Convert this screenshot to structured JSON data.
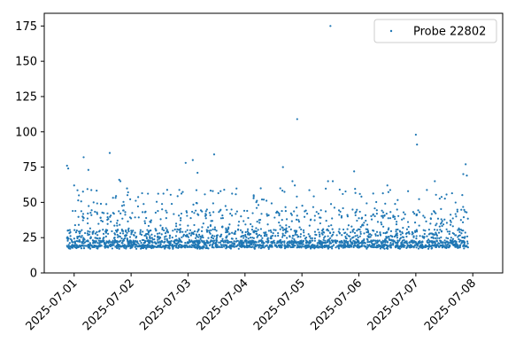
{
  "chart_data": {
    "type": "scatter",
    "title": "",
    "xlabel": "",
    "ylabel": "",
    "x_axis": {
      "kind": "date",
      "range": [
        "2025-06-30T11:24",
        "2025-07-08T12:36"
      ],
      "ticks": [
        "2025-07-01",
        "2025-07-02",
        "2025-07-03",
        "2025-07-04",
        "2025-07-05",
        "2025-07-06",
        "2025-07-07",
        "2025-07-08"
      ]
    },
    "y_axis": {
      "range": [
        0,
        184
      ],
      "ticks": [
        0,
        25,
        50,
        75,
        100,
        125,
        150,
        175
      ]
    },
    "grid": false,
    "legend": {
      "placement": "top-right"
    },
    "series": [
      {
        "name": "Probe 22802",
        "color": "#1f77b4",
        "marker_size": 2,
        "points_note_count": 0,
        "points": [
          [
            "2025-06-30T21:00",
            76
          ],
          [
            "2025-06-30T21:30",
            74
          ],
          [
            "2025-07-01T00:00",
            62
          ],
          [
            "2025-07-01T04:00",
            82
          ],
          [
            "2025-07-01T06:00",
            73
          ],
          [
            "2025-07-01T02:00",
            55
          ],
          [
            "2025-07-01T15:00",
            85
          ],
          [
            "2025-07-01T19:00",
            66
          ],
          [
            "2025-07-01T19:30",
            65
          ],
          [
            "2025-07-02T23:00",
            78
          ],
          [
            "2025-07-03T02:00",
            80
          ],
          [
            "2025-07-03T04:00",
            71
          ],
          [
            "2025-07-03T11:00",
            84
          ],
          [
            "2025-07-04T20:00",
            65
          ],
          [
            "2025-07-04T21:00",
            62
          ],
          [
            "2025-07-04T16:00",
            75
          ],
          [
            "2025-07-04T22:00",
            109
          ],
          [
            "2025-07-05T12:00",
            175
          ],
          [
            "2025-07-05T11:00",
            65
          ],
          [
            "2025-07-05T13:00",
            65
          ],
          [
            "2025-07-05T22:00",
            72
          ],
          [
            "2025-07-06T12:00",
            62
          ],
          [
            "2025-07-07T00:00",
            98
          ],
          [
            "2025-07-07T00:30",
            91
          ],
          [
            "2025-07-07T08:00",
            65
          ],
          [
            "2025-07-07T21:00",
            77
          ],
          [
            "2025-07-07T20:00",
            70
          ],
          [
            "2025-07-07T21:30",
            69
          ]
        ]
      }
    ]
  }
}
